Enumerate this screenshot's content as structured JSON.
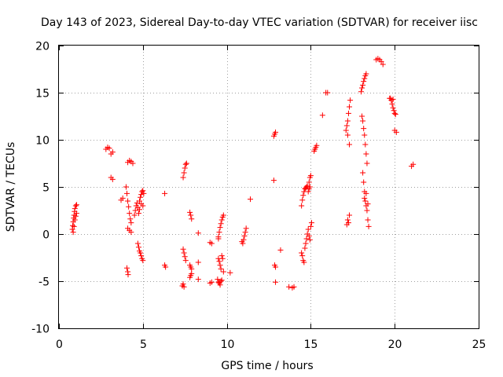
{
  "chart_data": {
    "type": "scatter",
    "title": "Day 143 of 2023, Sidereal Day-to-day VTEC variation (SDTVAR) for receiver iisc",
    "xlabel": "GPS time / hours",
    "ylabel": "SDTVAR / TECUs",
    "xlim": [
      0,
      25
    ],
    "ylim": [
      -10,
      20
    ],
    "xticks": [
      "0",
      "5",
      "10",
      "15",
      "20",
      "25"
    ],
    "yticks": [
      "-10",
      "-5",
      "0",
      "5",
      "10",
      "15",
      "20"
    ],
    "grid": true,
    "marker": "plus",
    "color": "#ff0000",
    "series": [
      {
        "name": "SDTVAR",
        "points": [
          [
            0.8,
            0.5
          ],
          [
            0.82,
            0.9
          ],
          [
            0.85,
            1.3
          ],
          [
            0.88,
            1.7
          ],
          [
            0.9,
            2.0
          ],
          [
            0.93,
            2.4
          ],
          [
            0.95,
            2.7
          ],
          [
            1.0,
            3.0
          ],
          [
            1.05,
            3.1
          ],
          [
            0.85,
            0.2
          ],
          [
            0.9,
            0.8
          ],
          [
            0.95,
            1.5
          ],
          [
            1.0,
            1.9
          ],
          [
            1.05,
            2.2
          ],
          [
            2.8,
            9.0
          ],
          [
            2.9,
            9.2
          ],
          [
            3.0,
            9.1
          ],
          [
            3.1,
            8.5
          ],
          [
            3.2,
            8.7
          ],
          [
            3.1,
            6.0
          ],
          [
            3.2,
            5.8
          ],
          [
            3.7,
            3.6
          ],
          [
            3.8,
            3.8
          ],
          [
            4.05,
            -3.6
          ],
          [
            4.1,
            -4.0
          ],
          [
            4.12,
            -4.3
          ],
          [
            4.0,
            5.0
          ],
          [
            4.05,
            4.3
          ],
          [
            4.1,
            3.5
          ],
          [
            4.15,
            2.9
          ],
          [
            4.2,
            2.2
          ],
          [
            4.25,
            1.6
          ],
          [
            4.3,
            1.2
          ],
          [
            4.1,
            0.6
          ],
          [
            4.2,
            0.4
          ],
          [
            4.3,
            0.2
          ],
          [
            4.1,
            7.6
          ],
          [
            4.2,
            7.8
          ],
          [
            4.3,
            7.7
          ],
          [
            4.4,
            7.5
          ],
          [
            4.5,
            2.0
          ],
          [
            4.55,
            2.5
          ],
          [
            4.6,
            3.0
          ],
          [
            4.65,
            3.3
          ],
          [
            4.7,
            2.8
          ],
          [
            4.75,
            2.2
          ],
          [
            4.8,
            3.5
          ],
          [
            4.85,
            3.9
          ],
          [
            4.9,
            4.2
          ],
          [
            4.95,
            4.5
          ],
          [
            5.0,
            4.6
          ],
          [
            5.05,
            4.3
          ],
          [
            4.8,
            2.6
          ],
          [
            4.9,
            3.2
          ],
          [
            5.0,
            3.0
          ],
          [
            4.7,
            -1.0
          ],
          [
            4.75,
            -1.4
          ],
          [
            4.8,
            -1.8
          ],
          [
            4.85,
            -2.0
          ],
          [
            4.9,
            -2.3
          ],
          [
            4.95,
            -2.6
          ],
          [
            5.0,
            -2.8
          ],
          [
            6.3,
            4.3
          ],
          [
            6.3,
            -3.3
          ],
          [
            6.35,
            -3.5
          ],
          [
            7.35,
            -5.5
          ],
          [
            7.4,
            -5.3
          ],
          [
            7.45,
            -5.6
          ],
          [
            7.4,
            -1.6
          ],
          [
            7.45,
            -2.0
          ],
          [
            7.5,
            -2.4
          ],
          [
            7.55,
            -2.8
          ],
          [
            7.4,
            6.0
          ],
          [
            7.45,
            6.5
          ],
          [
            7.5,
            7.0
          ],
          [
            7.55,
            7.4
          ],
          [
            7.6,
            7.5
          ],
          [
            7.8,
            2.3
          ],
          [
            7.85,
            2.0
          ],
          [
            7.9,
            1.6
          ],
          [
            7.8,
            -3.3
          ],
          [
            7.85,
            -3.5
          ],
          [
            7.9,
            -3.7
          ],
          [
            7.8,
            -4.6
          ],
          [
            7.85,
            -4.4
          ],
          [
            7.9,
            -4.2
          ],
          [
            8.3,
            0.1
          ],
          [
            8.3,
            -3.0
          ],
          [
            8.3,
            -4.8
          ],
          [
            9.0,
            -0.9
          ],
          [
            9.1,
            -1.0
          ],
          [
            9.0,
            -5.2
          ],
          [
            9.1,
            -5.1
          ],
          [
            9.5,
            -0.3
          ],
          [
            9.55,
            0.2
          ],
          [
            9.6,
            0.7
          ],
          [
            9.65,
            1.1
          ],
          [
            9.7,
            1.5
          ],
          [
            9.75,
            1.8
          ],
          [
            9.8,
            2.0
          ],
          [
            9.5,
            -0.5
          ],
          [
            9.45,
            -4.8
          ],
          [
            9.5,
            -5.1
          ],
          [
            9.55,
            -5.2
          ],
          [
            9.6,
            -5.4
          ],
          [
            9.65,
            -5.0
          ],
          [
            9.7,
            -4.9
          ],
          [
            9.5,
            -2.6
          ],
          [
            9.55,
            -2.9
          ],
          [
            9.6,
            -3.3
          ],
          [
            9.65,
            -3.7
          ],
          [
            9.7,
            -2.3
          ],
          [
            9.75,
            -2.6
          ],
          [
            9.8,
            -4.0
          ],
          [
            10.2,
            -4.1
          ],
          [
            10.9,
            -0.8
          ],
          [
            10.95,
            -1.0
          ],
          [
            11.0,
            -0.6
          ],
          [
            11.05,
            -0.2
          ],
          [
            11.1,
            0.2
          ],
          [
            11.15,
            0.6
          ],
          [
            11.4,
            3.7
          ],
          [
            12.8,
            5.7
          ],
          [
            12.8,
            10.4
          ],
          [
            12.85,
            10.6
          ],
          [
            12.9,
            10.8
          ],
          [
            12.85,
            -3.3
          ],
          [
            12.9,
            -3.5
          ],
          [
            12.9,
            -5.1
          ],
          [
            13.2,
            -1.7
          ],
          [
            13.7,
            -5.6
          ],
          [
            13.9,
            -5.7
          ],
          [
            14.0,
            -5.6
          ],
          [
            14.45,
            3.0
          ],
          [
            14.5,
            3.6
          ],
          [
            14.55,
            4.1
          ],
          [
            14.6,
            4.5
          ],
          [
            14.65,
            4.8
          ],
          [
            14.7,
            4.9
          ],
          [
            14.75,
            5.0
          ],
          [
            14.8,
            5.1
          ],
          [
            14.85,
            4.5
          ],
          [
            14.9,
            4.8
          ],
          [
            14.95,
            5.0
          ],
          [
            14.45,
            -2.0
          ],
          [
            14.5,
            -2.3
          ],
          [
            14.55,
            -2.8
          ],
          [
            14.6,
            -3.0
          ],
          [
            14.65,
            -1.5
          ],
          [
            14.7,
            -1.0
          ],
          [
            14.75,
            -0.5
          ],
          [
            14.8,
            0.0
          ],
          [
            14.85,
            0.5
          ],
          [
            14.9,
            -0.2
          ],
          [
            14.95,
            -0.6
          ],
          [
            15.0,
            0.8
          ],
          [
            15.05,
            1.2
          ],
          [
            14.9,
            5.5
          ],
          [
            14.95,
            6.0
          ],
          [
            15.0,
            6.2
          ],
          [
            15.2,
            8.8
          ],
          [
            15.25,
            9.0
          ],
          [
            15.3,
            9.2
          ],
          [
            15.35,
            9.4
          ],
          [
            15.7,
            12.6
          ],
          [
            15.9,
            15.0
          ],
          [
            16.0,
            15.0
          ],
          [
            17.1,
            11.0
          ],
          [
            17.15,
            11.5
          ],
          [
            17.2,
            12.0
          ],
          [
            17.25,
            12.8
          ],
          [
            17.3,
            13.5
          ],
          [
            17.35,
            14.2
          ],
          [
            17.2,
            10.5
          ],
          [
            17.3,
            9.5
          ],
          [
            17.15,
            1.0
          ],
          [
            17.2,
            1.5
          ],
          [
            17.3,
            2.0
          ],
          [
            17.25,
            1.2
          ],
          [
            18.0,
            15.1
          ],
          [
            18.05,
            15.5
          ],
          [
            18.1,
            15.8
          ],
          [
            18.15,
            16.2
          ],
          [
            18.2,
            16.5
          ],
          [
            18.25,
            16.8
          ],
          [
            18.3,
            17.0
          ],
          [
            18.05,
            12.5
          ],
          [
            18.1,
            12.0
          ],
          [
            18.15,
            11.2
          ],
          [
            18.2,
            10.5
          ],
          [
            18.25,
            9.5
          ],
          [
            18.3,
            8.5
          ],
          [
            18.35,
            7.5
          ],
          [
            18.1,
            6.5
          ],
          [
            18.15,
            5.5
          ],
          [
            18.2,
            4.5
          ],
          [
            18.25,
            3.5
          ],
          [
            18.3,
            3.0
          ],
          [
            18.35,
            2.5
          ],
          [
            18.4,
            1.5
          ],
          [
            18.45,
            0.8
          ],
          [
            18.2,
            3.8
          ],
          [
            18.3,
            4.3
          ],
          [
            18.4,
            3.2
          ],
          [
            18.9,
            18.5
          ],
          [
            19.0,
            18.6
          ],
          [
            19.1,
            18.5
          ],
          [
            19.2,
            18.3
          ],
          [
            19.3,
            18.0
          ],
          [
            19.7,
            14.4
          ],
          [
            19.8,
            14.2
          ],
          [
            19.85,
            13.8
          ],
          [
            19.9,
            13.4
          ],
          [
            19.95,
            13.1
          ],
          [
            20.0,
            12.8
          ],
          [
            20.05,
            12.7
          ],
          [
            19.75,
            14.4
          ],
          [
            19.9,
            14.3
          ],
          [
            20.0,
            11.0
          ],
          [
            20.1,
            10.8
          ],
          [
            21.0,
            7.2
          ],
          [
            21.1,
            7.4
          ]
        ]
      }
    ]
  }
}
